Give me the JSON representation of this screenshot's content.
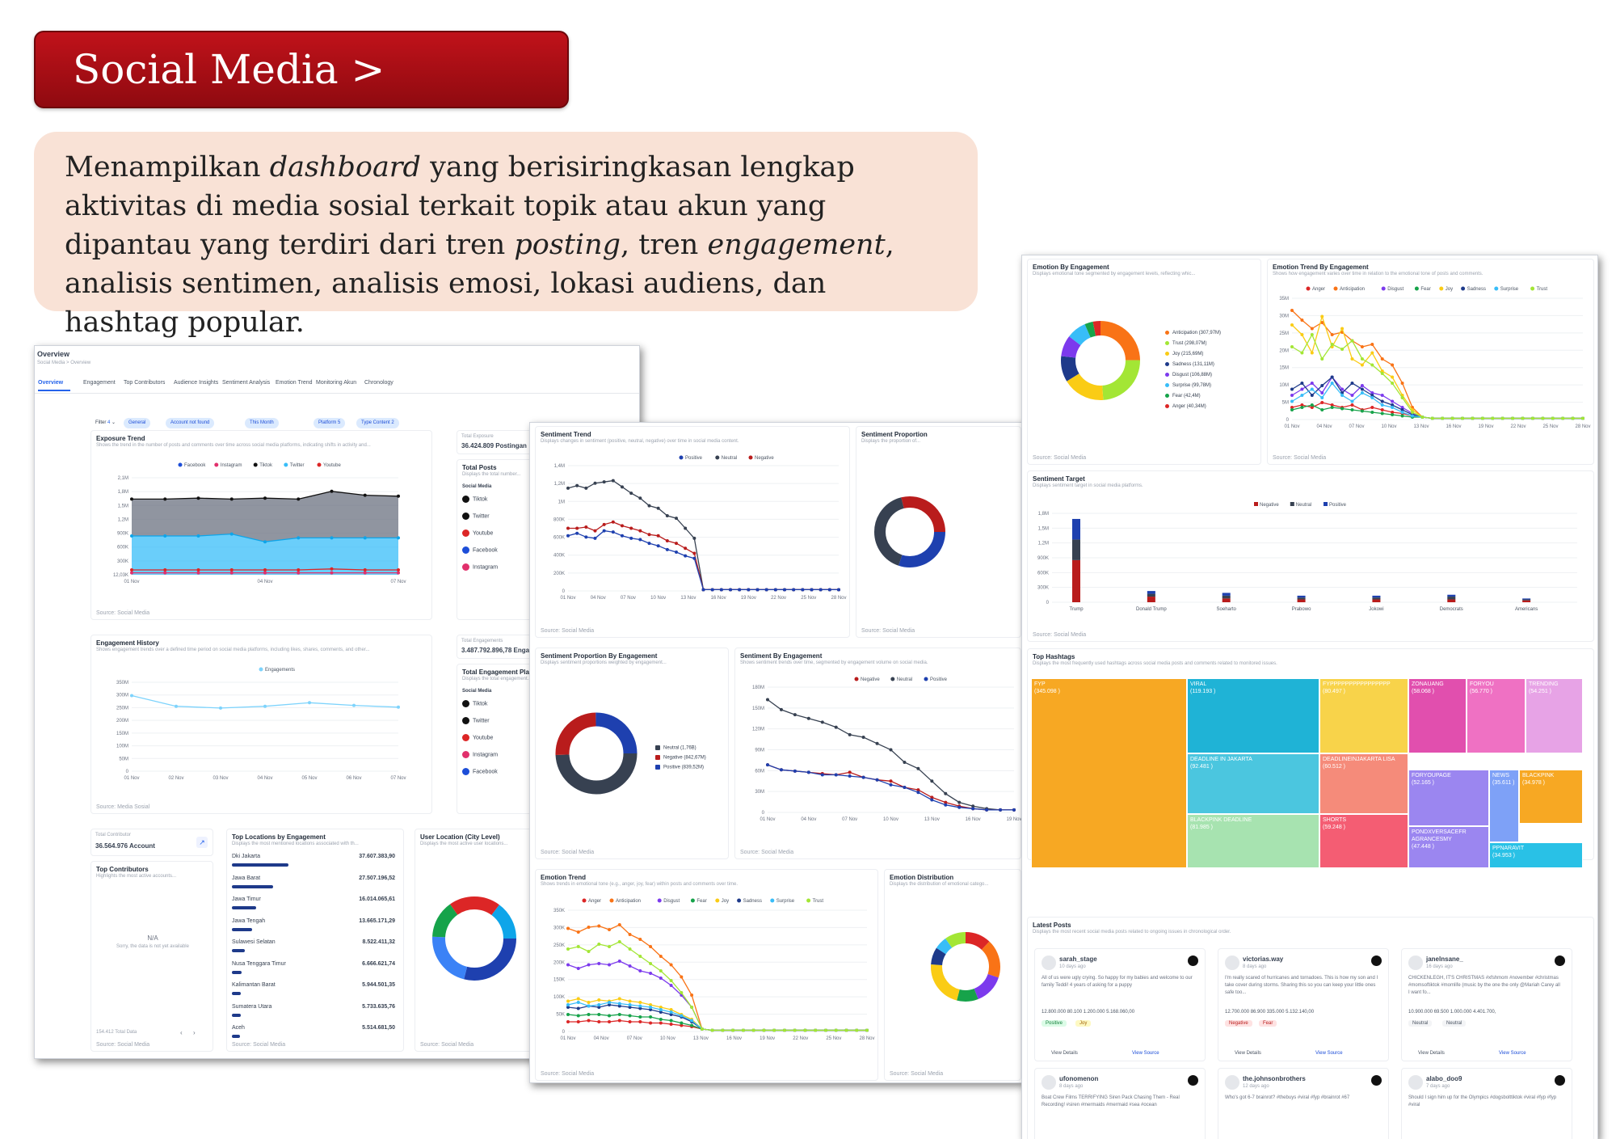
{
  "banner": {
    "title": "Social Media > Overview"
  },
  "description": {
    "p1": "Menampilkan ",
    "p2": "dashboard",
    "p3": " yang berisiringkasan lengkap aktivitas di media sosial terkait topik atau akun yang dipantau yang terdiri dari tren ",
    "p4": "posting",
    "p5": ", tren ",
    "p6": "engagement",
    "p7": ", analisis sentimen, analisis emosi, lokasi audiens, dan hashtag popular."
  },
  "overview": {
    "title": "Overview",
    "breadcrumb": "Social Media > Overview",
    "tabs": [
      "Overview",
      "Engagement",
      "Top Contributors",
      "Audience Insights",
      "Sentiment Analysis",
      "Emotion Trend",
      "Monitoring Akun",
      "Chronology"
    ],
    "filter_label": "Filter",
    "filter_count": "4",
    "filters": [
      "General",
      "Account not found",
      "This Month",
      "Platform 5",
      "Type Content 2"
    ],
    "exposure": {
      "title": "Exposure Trend",
      "subtitle": "Shows the trend in the number of posts and comments over time across social media platforms, indicating shifts in activity and...",
      "legend": [
        "Facebook",
        "Instagram",
        "Tiktok",
        "Twitter",
        "Youtube"
      ],
      "yticks": [
        "2,1M",
        "1,8M",
        "1,5M",
        "1,2M",
        "900K",
        "600K",
        "300K",
        "12,03K"
      ],
      "xticks": [
        "01 Nov",
        "04 Nov",
        "07 Nov"
      ],
      "source": "Source: Social Media"
    },
    "total_exposure": {
      "label": "Total Exposure",
      "value": "36.424.809 Postingan"
    },
    "total_posts": {
      "label": "Total Posts",
      "subtitle": "Displays the total number...",
      "section": "Social Media",
      "platforms": [
        "Tiktok",
        "Twitter",
        "Youtube",
        "Facebook",
        "Instagram"
      ]
    },
    "engagement": {
      "title": "Engagement History",
      "subtitle": "Shows engagement trends over a defined time period on social media platforms, including likes, shares, comments, and other...",
      "legend": [
        "Engagements"
      ],
      "yticks": [
        "350M",
        "300M",
        "250M",
        "200M",
        "150M",
        "100M",
        "50M",
        "0"
      ],
      "xticks": [
        "01 Nov",
        "02 Nov",
        "03 Nov",
        "04 Nov",
        "05 Nov",
        "06 Nov",
        "07 Nov"
      ],
      "source": "Source: Media Sosial"
    },
    "total_engagements": {
      "label": "Total Engagements",
      "value": "3.487.792.896,78 Engagement"
    },
    "total_engagement_platform": {
      "label": "Total Engagement Platform",
      "subtitle": "Displays the total engagement...",
      "section": "Social Media",
      "platforms": [
        "Tiktok",
        "Twitter",
        "Youtube",
        "Instagram",
        "Facebook"
      ]
    },
    "total_contributor": {
      "label": "Total Contributor",
      "value": "36.564.976 Account"
    },
    "top_contributors": {
      "title": "Top Contributors",
      "subtitle": "Highlights the most active accounts...",
      "empty_title": "N/A",
      "empty_text": "Sorry, the data is not yet available",
      "footer": "154.412 Total Data",
      "source": "Source: Social Media"
    },
    "top_locations": {
      "title": "Top Locations by Engagement",
      "subtitle": "Displays the most mentioned locations associated with th...",
      "rows": [
        {
          "name": "Dki Jakarta",
          "value": "37.607.383,90"
        },
        {
          "name": "Jawa Barat",
          "value": "27.507.196,52"
        },
        {
          "name": "Jawa Timur",
          "value": "16.014.065,61"
        },
        {
          "name": "Jawa Tengah",
          "value": "13.665.171,29"
        },
        {
          "name": "Sulawesi Selatan",
          "value": "8.522.411,32"
        },
        {
          "name": "Nusa Tenggara Timur",
          "value": "6.666.621,74"
        },
        {
          "name": "Kalimantan Barat",
          "value": "5.944.501,35"
        },
        {
          "name": "Sumatera Utara",
          "value": "5.733.635,76"
        },
        {
          "name": "Aceh",
          "value": "5.514.681,50"
        }
      ],
      "source": "Source: Social Media"
    },
    "user_location": {
      "title": "User Location (City Level)",
      "subtitle": "Displays the most active user locations...",
      "source": "Source: Social Media"
    }
  },
  "sentiment": {
    "trend": {
      "title": "Sentiment Trend",
      "subtitle": "Displays changes in sentiment (positive, neutral, negative) over time in social media content.",
      "legend": [
        "Positive",
        "Neutral",
        "Negative"
      ],
      "yticks": [
        "1,4M",
        "1,2M",
        "1M",
        "800K",
        "600K",
        "400K",
        "200K",
        "0"
      ],
      "xticks": [
        "01 Nov",
        "04 Nov",
        "07 Nov",
        "10 Nov",
        "13 Nov",
        "16 Nov",
        "19 Nov",
        "22 Nov",
        "25 Nov",
        "28 Nov"
      ],
      "source": "Source: Social Media"
    },
    "proportion": {
      "title": "Sentiment Proportion",
      "subtitle": "Displays the proportion of...",
      "source": "Source: Social Media"
    },
    "prop_engagement": {
      "title": "Sentiment Proportion By Engagement",
      "subtitle": "Displays sentiment proportions weighted by engagement...",
      "legend": [
        "Neutral (1,76B)",
        "Negative (842,67M)",
        "Positive (839,52M)"
      ],
      "source": "Source: Social Media"
    },
    "by_engagement": {
      "title": "Sentiment By Engagement",
      "subtitle": "Shows sentiment trends over time, segmented by engagement volume on social media.",
      "legend": [
        "Negative",
        "Neutral",
        "Positive"
      ],
      "yticks": [
        "180M",
        "150M",
        "120M",
        "90M",
        "60M",
        "30M",
        "0"
      ],
      "xticks": [
        "01 Nov",
        "04 Nov",
        "07 Nov",
        "10 Nov",
        "13 Nov",
        "16 Nov",
        "19 Nov"
      ],
      "source": "Source: Social Media"
    },
    "emotion_trend": {
      "title": "Emotion Trend",
      "subtitle": "Shows trends in emotional tone (e.g., anger, joy, fear) within posts and comments over time.",
      "legend": [
        "Anger",
        "Anticipation",
        "Disgust",
        "Fear",
        "Joy",
        "Sadness",
        "Surprise",
        "Trust"
      ],
      "yticks": [
        "350K",
        "300K",
        "250K",
        "200K",
        "150K",
        "100K",
        "50K",
        "0"
      ],
      "xticks": [
        "01 Nov",
        "04 Nov",
        "07 Nov",
        "10 Nov",
        "13 Nov",
        "16 Nov",
        "19 Nov",
        "22 Nov",
        "25 Nov",
        "28 Nov"
      ],
      "source": "Source: Social Media"
    },
    "emotion_distribution": {
      "title": "Emotion Distribution",
      "subtitle": "Displays the distribution of emotional catego...",
      "source": "Source: Social Media"
    }
  },
  "right": {
    "emotion_by_engagement": {
      "title": "Emotion By Engagement",
      "subtitle": "Displays emotional tone segmented by engagement levels, reflecting whic...",
      "legend": [
        "Anticipation (307,97M)",
        "Trust (298,07M)",
        "Joy (215,69M)",
        "Sadness (131,11M)",
        "Disgust (106,88M)",
        "Surprise (99,78M)",
        "Fear (42,4M)",
        "Anger (40,34M)"
      ],
      "source": "Source: Social Media"
    },
    "emotion_trend_engagement": {
      "title": "Emotion Trend By Engagement",
      "subtitle": "Shows how engagement varies over time in relation to the emotional tone of posts and comments.",
      "legend": [
        "Anger",
        "Anticipation",
        "Disgust",
        "Fear",
        "Joy",
        "Sadness",
        "Surprise",
        "Trust"
      ],
      "yticks": [
        "35M",
        "30M",
        "25M",
        "20M",
        "15M",
        "10M",
        "5M",
        "0"
      ],
      "xticks": [
        "01 Nov",
        "04 Nov",
        "07 Nov",
        "10 Nov",
        "13 Nov",
        "16 Nov",
        "19 Nov",
        "22 Nov",
        "25 Nov",
        "28 Nov"
      ],
      "source": "Source: Social Media"
    },
    "sentiment_target": {
      "title": "Sentiment Target",
      "subtitle": "Displays sentiment target in social media platforms.",
      "legend": [
        "Negative",
        "Neutral",
        "Positive"
      ],
      "yticks": [
        "1,8M",
        "1,5M",
        "1,2M",
        "900K",
        "600K",
        "300K",
        "0"
      ],
      "categories": [
        "Trump",
        "Donald Trump",
        "Soeharto",
        "Prabowo",
        "Jokowi",
        "Democrats",
        "Americans"
      ],
      "source": "Source: Social Media"
    },
    "top_hashtags": {
      "title": "Top Hashtags",
      "subtitle": "Displays the most frequently used hashtags across social media posts and comments related to monitored issues.",
      "tiles": [
        {
          "tag": "FYP",
          "count": "(345.098 )"
        },
        {
          "tag": "VIRAL",
          "count": "(119.193 )"
        },
        {
          "tag": "FYPPPPPPPPPPPPPPPP",
          "count": "(80.497 )"
        },
        {
          "tag": "ZONAUANG",
          "count": "(58.068 )"
        },
        {
          "tag": "FORYOU",
          "count": "(56.770 )"
        },
        {
          "tag": "TRENDING",
          "count": "(54.251 )"
        },
        {
          "tag": "DEADLINE IN JAKARTA",
          "count": "(92.481 )"
        },
        {
          "tag": "DEADLINEINJAKARTA LISA",
          "count": "(60.512 )"
        },
        {
          "tag": "FORYOUPAGE",
          "count": "(52.165 )"
        },
        {
          "tag": "NEWS",
          "count": "(35.611 )"
        },
        {
          "tag": "BLACKPINK",
          "count": "(34.978 )"
        },
        {
          "tag": "BLACKPINK DEADLINE",
          "count": "(81.985 )"
        },
        {
          "tag": "SHORTS",
          "count": "(59.248 )"
        },
        {
          "tag": "PONDXVERSACEFR AGRANCESMY",
          "count": "(47.448 )"
        },
        {
          "tag": "PPNARAVIT",
          "count": "(34.953 )"
        }
      ],
      "source": "Source: Social Media"
    },
    "latest_posts": {
      "title": "Latest Posts",
      "subtitle": "Displays the most recent social media posts related to ongoing issues in chronological order.",
      "view_details": "View Details",
      "view_source": "View Source",
      "posts": [
        {
          "user": "sarah_stage",
          "date": "10 days ago",
          "text": "All of us were ugly crying. So happy for my babies and welcome to our family Teddi! 4 years of asking for a puppy",
          "metrics": "12.800.000   80.100   1.200.000   5.168.060,00",
          "b1": "Positive",
          "b2": "Joy"
        },
        {
          "user": "victorias.way",
          "date": "8 days ago",
          "text": "I'm really scared of hurricanes and tornadoes. This is how my son and I take cover during storms. Sharing this so you can keep your little ones safe too...",
          "metrics": "12.700.000   86.900   335.000   5.132.140,00",
          "b1": "Negative",
          "b2": "Fear"
        },
        {
          "user": "janelnsane_",
          "date": "16 days ago",
          "text": "CHICKENLEGH, IT'S CHRISTMAS #xfshmom #november #christmas #momsoftiktok #momlife (music by the one the only @Mariah Carey all I want fo...",
          "metrics": "10.900.000   69.500   1.000.000   4.401.700,",
          "b1": "Neutral",
          "b2": "Neutral"
        },
        {
          "user": "ufonomenon",
          "date": "8 days ago",
          "text": "Boat Crew Films TERRIFYING Siren Pack Chasing Them - Real Recording! #siren #mermaids #mermaid #sea #ocean"
        },
        {
          "user": "the.johnsonbrothers",
          "date": "12 days ago",
          "text": "Who's got 6-7 brainrot? #thebuys #viral #fyp #brainrot #67"
        },
        {
          "user": "alabo_doo9",
          "date": "7 days ago",
          "text": "Should I sign him up for the Olympics #dogsbolttiktok #viral #fyp #fyp #viral"
        }
      ]
    }
  }
}
